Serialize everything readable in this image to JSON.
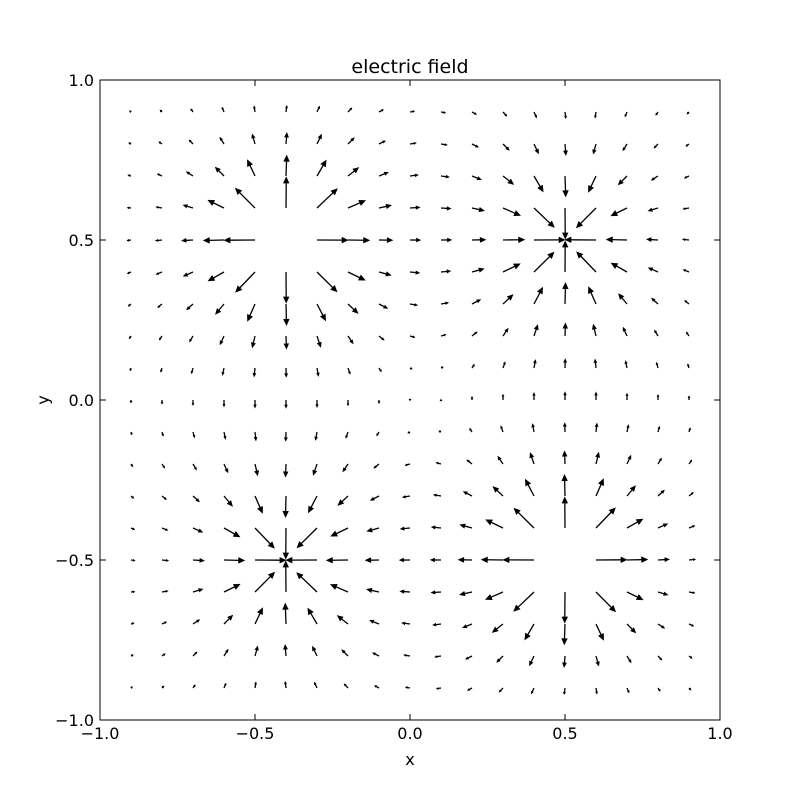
{
  "chart_data": {
    "type": "quiver",
    "title": "electric field",
    "xlabel": "x",
    "ylabel": "y",
    "xlim": [
      -1.0,
      1.0
    ],
    "ylim": [
      -1.0,
      1.0
    ],
    "xticks": [
      -1.0,
      -0.5,
      0.0,
      0.5,
      1.0
    ],
    "yticks": [
      -1.0,
      -0.5,
      0.0,
      0.5,
      1.0
    ],
    "xtick_labels": [
      "−1.0",
      "−0.5",
      "0.0",
      "0.5",
      "1.0"
    ],
    "ytick_labels": [
      "−1.0",
      "−0.5",
      "0.0",
      "0.5",
      "1.0"
    ],
    "grid": false,
    "grid_x": {
      "start": -0.9,
      "step": 0.1,
      "count": 19
    },
    "grid_y": {
      "start": -0.9,
      "step": 0.1,
      "count": 19
    },
    "charges": [
      {
        "x": -0.4,
        "y": 0.5,
        "q": 1
      },
      {
        "x": 0.5,
        "y": 0.5,
        "q": -1
      },
      {
        "x": -0.4,
        "y": -0.5,
        "q": -1
      },
      {
        "x": 0.5,
        "y": -0.5,
        "q": 1
      }
    ],
    "field_law": "inverse-square (Coulomb), arrows normalized with saturation"
  },
  "colors": {
    "arrow": "#000000",
    "axes": "#000000",
    "background": "#ffffff"
  }
}
